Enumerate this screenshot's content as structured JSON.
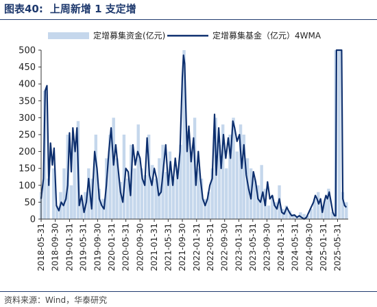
{
  "figure": {
    "label": "图表40:",
    "title": "上周新增 1 支定增",
    "source": "资料来源：Wind，华泰研究"
  },
  "chart_data": {
    "type": "area",
    "ylim": [
      0,
      500
    ],
    "yticks": [
      0,
      50,
      100,
      150,
      200,
      250,
      300,
      350,
      400,
      450,
      500
    ],
    "x_ticks": [
      "2018-05-31",
      "2018-09-30",
      "2019-01-31",
      "2019-05-31",
      "2019-09-30",
      "2020-01-31",
      "2020-05-31",
      "2020-09-30",
      "2021-01-31",
      "2021-05-31",
      "2021-09-30",
      "2022-01-31",
      "2022-05-31",
      "2022-09-30",
      "2023-01-31",
      "2023-05-31",
      "2023-09-30",
      "2024-01-31",
      "2024-05-31",
      "2024-09-30",
      "2025-01-31",
      "2025-05-31"
    ],
    "x_start": "2018-05-31",
    "x_end": "2025-08-31",
    "legend_position": "top",
    "colors": {
      "weekly_fill": "#c5d7ec",
      "wma_line": "#0d2f6e",
      "axis": "#333333"
    },
    "series": [
      {
        "name": "定增募集资金(亿元)",
        "type": "bar",
        "points": [
          [
            "2018-05-31",
            80
          ],
          [
            "2018-07-01",
            380
          ],
          [
            "2018-08-01",
            120
          ],
          [
            "2018-09-15",
            150
          ],
          [
            "2018-10-15",
            40
          ],
          [
            "2018-11-15",
            80
          ],
          [
            "2018-12-15",
            150
          ],
          [
            "2019-01-15",
            250
          ],
          [
            "2019-02-15",
            100
          ],
          [
            "2019-03-15",
            230
          ],
          [
            "2019-04-15",
            290
          ],
          [
            "2019-05-15",
            60
          ],
          [
            "2019-06-15",
            80
          ],
          [
            "2019-07-15",
            150
          ],
          [
            "2019-08-15",
            120
          ],
          [
            "2019-09-15",
            250
          ],
          [
            "2019-10-15",
            90
          ],
          [
            "2019-11-15",
            60
          ],
          [
            "2019-12-15",
            180
          ],
          [
            "2020-01-15",
            250
          ],
          [
            "2020-02-15",
            300
          ],
          [
            "2020-03-15",
            180
          ],
          [
            "2020-04-15",
            110
          ],
          [
            "2020-05-15",
            250
          ],
          [
            "2020-06-15",
            120
          ],
          [
            "2020-07-15",
            220
          ],
          [
            "2020-08-15",
            150
          ],
          [
            "2020-09-15",
            280
          ],
          [
            "2020-10-15",
            150
          ],
          [
            "2020-11-15",
            130
          ],
          [
            "2020-12-15",
            250
          ],
          [
            "2021-01-15",
            160
          ],
          [
            "2021-02-15",
            120
          ],
          [
            "2021-03-15",
            180
          ],
          [
            "2021-04-15",
            220
          ],
          [
            "2021-05-15",
            140
          ],
          [
            "2021-06-15",
            200
          ],
          [
            "2021-07-15",
            120
          ],
          [
            "2021-08-15",
            150
          ],
          [
            "2021-09-15",
            220
          ],
          [
            "2021-10-15",
            500
          ],
          [
            "2021-11-15",
            260
          ],
          [
            "2021-12-15",
            200
          ],
          [
            "2022-01-15",
            300
          ],
          [
            "2022-02-15",
            150
          ],
          [
            "2022-03-15",
            120
          ],
          [
            "2022-04-15",
            60
          ],
          [
            "2022-05-15",
            80
          ],
          [
            "2022-06-15",
            150
          ],
          [
            "2022-07-15",
            300
          ],
          [
            "2022-08-15",
            220
          ],
          [
            "2022-09-15",
            280
          ],
          [
            "2022-10-15",
            150
          ],
          [
            "2022-11-15",
            250
          ],
          [
            "2022-12-15",
            300
          ],
          [
            "2023-01-15",
            200
          ],
          [
            "2023-02-15",
            280
          ],
          [
            "2023-03-15",
            250
          ],
          [
            "2023-04-15",
            180
          ],
          [
            "2023-05-15",
            150
          ],
          [
            "2023-06-15",
            120
          ],
          [
            "2023-07-15",
            100
          ],
          [
            "2023-08-15",
            160
          ],
          [
            "2023-09-15",
            90
          ],
          [
            "2023-10-15",
            40
          ],
          [
            "2023-11-15",
            70
          ],
          [
            "2023-12-15",
            50
          ],
          [
            "2024-01-15",
            100
          ],
          [
            "2024-02-15",
            30
          ],
          [
            "2024-03-15",
            40
          ],
          [
            "2024-04-15",
            25
          ],
          [
            "2024-05-15",
            15
          ],
          [
            "2024-06-15",
            10
          ],
          [
            "2024-07-15",
            20
          ],
          [
            "2024-08-15",
            15
          ],
          [
            "2024-09-15",
            10
          ],
          [
            "2024-10-15",
            30
          ],
          [
            "2024-11-15",
            60
          ],
          [
            "2024-12-15",
            80
          ],
          [
            "2025-01-15",
            40
          ],
          [
            "2025-02-15",
            60
          ],
          [
            "2025-03-15",
            90
          ],
          [
            "2025-04-15",
            20
          ],
          [
            "2025-05-15",
            500
          ],
          [
            "2025-06-15",
            500
          ],
          [
            "2025-07-15",
            80
          ],
          [
            "2025-08-15",
            50
          ]
        ]
      },
      {
        "name": "定增募集基金（亿元）4WMA",
        "type": "line",
        "points": [
          [
            "2018-05-31",
            60
          ],
          [
            "2018-06-20",
            120
          ],
          [
            "2018-07-05",
            380
          ],
          [
            "2018-07-20",
            395
          ],
          [
            "2018-08-05",
            100
          ],
          [
            "2018-08-20",
            225
          ],
          [
            "2018-09-05",
            160
          ],
          [
            "2018-09-20",
            210
          ],
          [
            "2018-10-10",
            40
          ],
          [
            "2018-10-31",
            25
          ],
          [
            "2018-11-20",
            50
          ],
          [
            "2018-12-10",
            40
          ],
          [
            "2018-12-31",
            60
          ],
          [
            "2019-01-15",
            100
          ],
          [
            "2019-01-31",
            255
          ],
          [
            "2019-02-15",
            140
          ],
          [
            "2019-03-01",
            270
          ],
          [
            "2019-03-20",
            200
          ],
          [
            "2019-04-05",
            270
          ],
          [
            "2019-04-25",
            40
          ],
          [
            "2019-05-15",
            70
          ],
          [
            "2019-06-05",
            20
          ],
          [
            "2019-06-25",
            50
          ],
          [
            "2019-07-15",
            120
          ],
          [
            "2019-08-10",
            30
          ],
          [
            "2019-09-05",
            200
          ],
          [
            "2019-09-25",
            150
          ],
          [
            "2019-10-15",
            60
          ],
          [
            "2019-11-05",
            40
          ],
          [
            "2019-11-25",
            30
          ],
          [
            "2019-12-15",
            100
          ],
          [
            "2020-01-05",
            200
          ],
          [
            "2020-01-25",
            270
          ],
          [
            "2020-02-15",
            160
          ],
          [
            "2020-03-05",
            220
          ],
          [
            "2020-03-25",
            150
          ],
          [
            "2020-04-15",
            80
          ],
          [
            "2020-05-05",
            50
          ],
          [
            "2020-05-31",
            150
          ],
          [
            "2020-06-20",
            140
          ],
          [
            "2020-07-10",
            70
          ],
          [
            "2020-07-31",
            220
          ],
          [
            "2020-08-20",
            160
          ],
          [
            "2020-09-10",
            200
          ],
          [
            "2020-09-30",
            180
          ],
          [
            "2020-10-20",
            120
          ],
          [
            "2020-11-10",
            100
          ],
          [
            "2020-11-30",
            240
          ],
          [
            "2020-12-20",
            130
          ],
          [
            "2021-01-10",
            100
          ],
          [
            "2021-01-31",
            150
          ],
          [
            "2021-02-20",
            120
          ],
          [
            "2021-03-10",
            70
          ],
          [
            "2021-03-31",
            80
          ],
          [
            "2021-04-20",
            150
          ],
          [
            "2021-05-10",
            220
          ],
          [
            "2021-05-31",
            100
          ],
          [
            "2021-06-20",
            170
          ],
          [
            "2021-07-10",
            100
          ],
          [
            "2021-07-31",
            180
          ],
          [
            "2021-08-20",
            120
          ],
          [
            "2021-09-10",
            200
          ],
          [
            "2021-09-30",
            420
          ],
          [
            "2021-10-10",
            485
          ],
          [
            "2021-10-20",
            460
          ],
          [
            "2021-11-10",
            200
          ],
          [
            "2021-11-25",
            275
          ],
          [
            "2021-12-15",
            170
          ],
          [
            "2022-01-05",
            240
          ],
          [
            "2022-01-25",
            100
          ],
          [
            "2022-02-15",
            200
          ],
          [
            "2022-03-05",
            120
          ],
          [
            "2022-03-25",
            60
          ],
          [
            "2022-04-15",
            40
          ],
          [
            "2022-05-05",
            60
          ],
          [
            "2022-05-25",
            100
          ],
          [
            "2022-06-15",
            120
          ],
          [
            "2022-07-05",
            310
          ],
          [
            "2022-07-20",
            130
          ],
          [
            "2022-08-10",
            270
          ],
          [
            "2022-08-31",
            150
          ],
          [
            "2022-09-20",
            250
          ],
          [
            "2022-10-10",
            180
          ],
          [
            "2022-10-31",
            240
          ],
          [
            "2022-11-20",
            180
          ],
          [
            "2022-12-10",
            290
          ],
          [
            "2022-12-25",
            270
          ],
          [
            "2023-01-15",
            230
          ],
          [
            "2023-02-05",
            250
          ],
          [
            "2023-02-25",
            150
          ],
          [
            "2023-03-15",
            220
          ],
          [
            "2023-04-05",
            130
          ],
          [
            "2023-04-25",
            90
          ],
          [
            "2023-05-15",
            60
          ],
          [
            "2023-06-05",
            140
          ],
          [
            "2023-06-25",
            110
          ],
          [
            "2023-07-15",
            60
          ],
          [
            "2023-08-05",
            50
          ],
          [
            "2023-08-25",
            80
          ],
          [
            "2023-09-15",
            40
          ],
          [
            "2023-10-05",
            110
          ],
          [
            "2023-10-25",
            60
          ],
          [
            "2023-11-15",
            70
          ],
          [
            "2023-12-05",
            40
          ],
          [
            "2023-12-25",
            30
          ],
          [
            "2024-01-15",
            60
          ],
          [
            "2024-02-05",
            20
          ],
          [
            "2024-02-25",
            15
          ],
          [
            "2024-03-20",
            35
          ],
          [
            "2024-04-10",
            20
          ],
          [
            "2024-05-01",
            10
          ],
          [
            "2024-05-25",
            12
          ],
          [
            "2024-06-15",
            5
          ],
          [
            "2024-07-05",
            10
          ],
          [
            "2024-07-25",
            5
          ],
          [
            "2024-08-15",
            0
          ],
          [
            "2024-09-05",
            5
          ],
          [
            "2024-09-25",
            20
          ],
          [
            "2024-10-15",
            35
          ],
          [
            "2024-11-05",
            50
          ],
          [
            "2024-11-20",
            70
          ],
          [
            "2024-12-05",
            60
          ],
          [
            "2024-12-20",
            45
          ],
          [
            "2025-01-05",
            60
          ],
          [
            "2025-01-20",
            20
          ],
          [
            "2025-02-05",
            50
          ],
          [
            "2025-02-20",
            70
          ],
          [
            "2025-03-05",
            60
          ],
          [
            "2025-03-20",
            80
          ],
          [
            "2025-04-05",
            50
          ],
          [
            "2025-04-20",
            20
          ],
          [
            "2025-05-05",
            10
          ],
          [
            "2025-05-15",
            10
          ],
          [
            "2025-05-22",
            500
          ],
          [
            "2025-06-05",
            500
          ],
          [
            "2025-06-25",
            500
          ],
          [
            "2025-07-05",
            500
          ],
          [
            "2025-07-15",
            60
          ],
          [
            "2025-07-31",
            40
          ],
          [
            "2025-08-15",
            35
          ]
        ]
      }
    ]
  }
}
